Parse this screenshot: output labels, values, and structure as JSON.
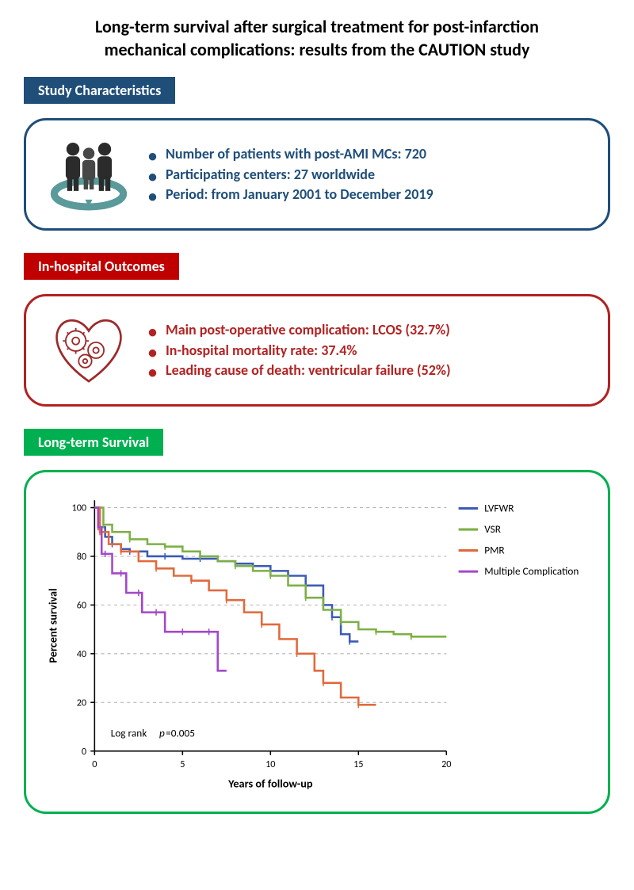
{
  "title_line1": "Long-term survival after surgical treatment for post-infarction",
  "title_line2": "mechanical complications: results from the CAUTION study",
  "sections": {
    "study": {
      "label": "Study Characteristics",
      "label_bg": "#1f4e79",
      "border": "#1f4e79",
      "text_color": "#1f4e79",
      "bullets": [
        "Number of patients with post-AMI MCs: 720",
        "Participating centers: 27 worldwide",
        "Period: from January 2001 to December 2019"
      ]
    },
    "inhospital": {
      "label": "In-hospital Outcomes",
      "label_bg": "#c00000",
      "border": "#b22222",
      "text_color": "#b22222",
      "bullets": [
        "Main post-operative complication: LCOS (32.7%)",
        "In-hospital mortality rate: 37.4%",
        "Leading cause of death: ventricular failure (52%)"
      ]
    },
    "longterm": {
      "label": "Long-term Survival",
      "label_bg": "#00b050",
      "border": "#00b050"
    }
  },
  "chart": {
    "type": "kaplan-meier",
    "xlabel": "Years of follow-up",
    "ylabel": "Percent survival",
    "xlim": [
      0,
      20
    ],
    "ylim": [
      0,
      103
    ],
    "xticks": [
      0,
      5,
      10,
      15,
      20
    ],
    "yticks": [
      0,
      20,
      40,
      60,
      80,
      100
    ],
    "grid_color": "#808080",
    "axis_color": "#000000",
    "label_fontsize": 14,
    "tick_fontsize": 12,
    "annotation": "Log rank p=0.005",
    "series": [
      {
        "name": "LVFWR",
        "color": "#3b5bb5",
        "points": [
          [
            0,
            100
          ],
          [
            0.3,
            92
          ],
          [
            0.6,
            88
          ],
          [
            1,
            85
          ],
          [
            1.5,
            83
          ],
          [
            2,
            82
          ],
          [
            3,
            80
          ],
          [
            4,
            80
          ],
          [
            5,
            79
          ],
          [
            6,
            79
          ],
          [
            7,
            78
          ],
          [
            8,
            77
          ],
          [
            9,
            76
          ],
          [
            10,
            74
          ],
          [
            11,
            72
          ],
          [
            12,
            68
          ],
          [
            13,
            60
          ],
          [
            13.5,
            55
          ],
          [
            14,
            48
          ],
          [
            14.5,
            45
          ],
          [
            15,
            45
          ]
        ]
      },
      {
        "name": "VSR",
        "color": "#7cb045",
        "points": [
          [
            0,
            100
          ],
          [
            0.5,
            93
          ],
          [
            1,
            90
          ],
          [
            2,
            87
          ],
          [
            3,
            85
          ],
          [
            4,
            84
          ],
          [
            5,
            82
          ],
          [
            6,
            80
          ],
          [
            7,
            78
          ],
          [
            8,
            76
          ],
          [
            9,
            74
          ],
          [
            10,
            72
          ],
          [
            11,
            68
          ],
          [
            12,
            63
          ],
          [
            13,
            58
          ],
          [
            14,
            53
          ],
          [
            15,
            50
          ],
          [
            16,
            49
          ],
          [
            17,
            48
          ],
          [
            18,
            47
          ],
          [
            19,
            47
          ],
          [
            20,
            47
          ]
        ]
      },
      {
        "name": "PMR",
        "color": "#e06a3c",
        "points": [
          [
            0,
            100
          ],
          [
            0.3,
            90
          ],
          [
            0.8,
            85
          ],
          [
            1.5,
            82
          ],
          [
            2.5,
            78
          ],
          [
            3.5,
            75
          ],
          [
            4.5,
            72
          ],
          [
            5.5,
            70
          ],
          [
            6.5,
            66
          ],
          [
            7.5,
            62
          ],
          [
            8.5,
            57
          ],
          [
            9.5,
            52
          ],
          [
            10.5,
            46
          ],
          [
            11.5,
            40
          ],
          [
            12.5,
            33
          ],
          [
            13,
            28
          ],
          [
            14,
            22
          ],
          [
            15,
            19
          ],
          [
            16,
            19
          ]
        ]
      },
      {
        "name": "Multiple Complication",
        "color": "#a347c9",
        "points": [
          [
            0,
            100
          ],
          [
            0.2,
            92
          ],
          [
            0.4,
            81
          ],
          [
            0.6,
            81
          ],
          [
            1,
            73
          ],
          [
            1.5,
            73
          ],
          [
            1.8,
            65
          ],
          [
            2.5,
            65
          ],
          [
            2.7,
            57
          ],
          [
            3.5,
            57
          ],
          [
            4,
            49
          ],
          [
            5,
            49
          ],
          [
            6,
            49
          ],
          [
            6.5,
            49
          ],
          [
            7,
            33
          ],
          [
            7.5,
            33
          ]
        ]
      }
    ]
  }
}
